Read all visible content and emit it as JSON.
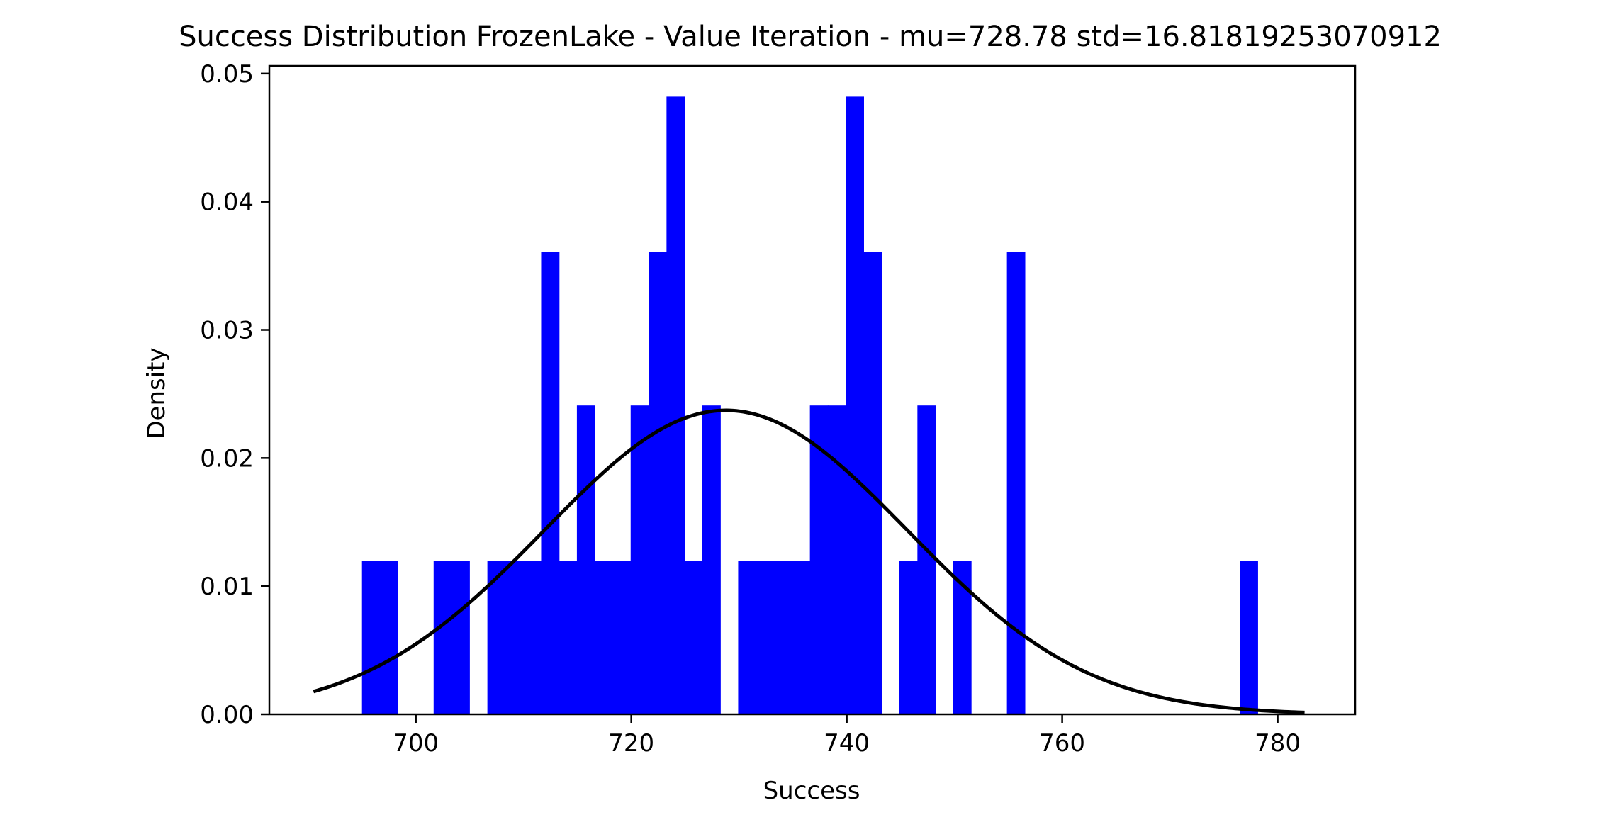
{
  "chart_data": {
    "type": "bar",
    "title": "Success Distribution FrozenLake - Value Iteration - mu=728.78 std=16.81819253070912",
    "xlabel": "Success",
    "ylabel": "Density",
    "xlim": [
      686.4,
      787.2
    ],
    "ylim": [
      0,
      0.0506
    ],
    "xticks": [
      700,
      720,
      740,
      760,
      780
    ],
    "xtick_labels": [
      "700",
      "720",
      "740",
      "760",
      "780"
    ],
    "yticks": [
      0.0,
      0.01,
      0.02,
      0.03,
      0.04,
      0.05
    ],
    "ytick_labels": [
      "0.00",
      "0.01",
      "0.02",
      "0.03",
      "0.04",
      "0.05"
    ],
    "bin_width": 1.663,
    "bar_color": "#0000ff",
    "curve_color": "#000000",
    "grid": false,
    "histogram": {
      "bin_starts": [
        695.0,
        696.66,
        701.65,
        703.31,
        706.64,
        708.3,
        709.96,
        711.63,
        713.29,
        714.95,
        716.62,
        718.28,
        719.94,
        721.61,
        723.27,
        724.93,
        726.6,
        729.92,
        731.59,
        733.25,
        734.91,
        736.58,
        738.24,
        739.9,
        741.57,
        744.89,
        746.56,
        749.88,
        754.87,
        776.48
      ],
      "densities": [
        0.012,
        0.012,
        0.012,
        0.012,
        0.012,
        0.012,
        0.012,
        0.0361,
        0.012,
        0.0241,
        0.012,
        0.012,
        0.0241,
        0.0361,
        0.0482,
        0.012,
        0.0241,
        0.012,
        0.012,
        0.012,
        0.012,
        0.0241,
        0.0241,
        0.0482,
        0.0361,
        0.012,
        0.0241,
        0.012,
        0.0361,
        0.012
      ]
    },
    "normal_curve": {
      "mu": 728.78,
      "std": 16.81819253070912,
      "x_range": [
        690.5,
        782.5
      ]
    }
  }
}
